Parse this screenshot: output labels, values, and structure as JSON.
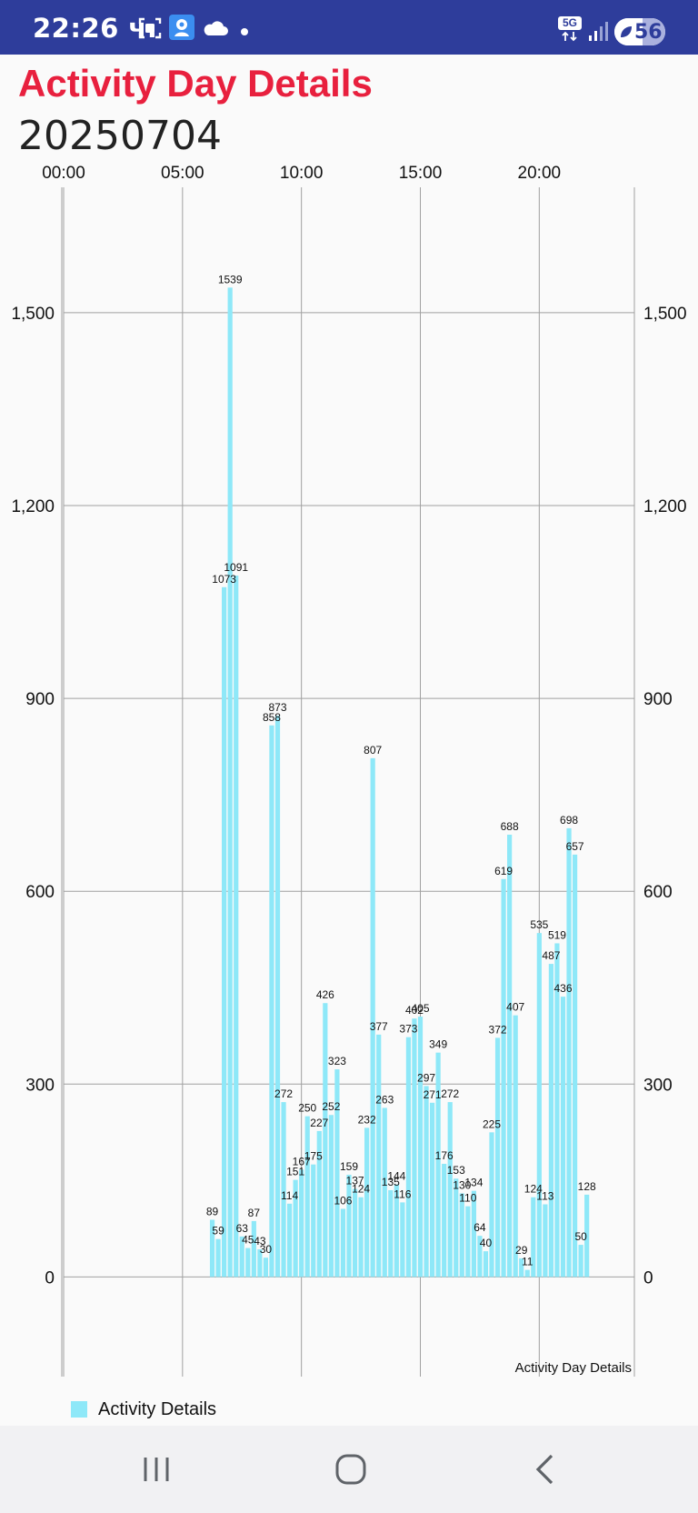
{
  "status_bar": {
    "time": "22:26 ч.",
    "network": "5G",
    "battery": "56",
    "icons": [
      "screenshot-icon",
      "location-icon",
      "cloud-icon",
      "dot-icon",
      "5g-icon",
      "signal-icon",
      "battery-icon"
    ]
  },
  "header": {
    "title": "Activity Day Details",
    "date": "20250704"
  },
  "colors": {
    "status_bar": "#2e3d9b",
    "title": "#e8203e",
    "bar": "#8ee8f8",
    "grid": "#a0a0a0"
  },
  "chart_data": {
    "type": "bar",
    "description_label": "Activity Day Details",
    "x_tick_labels": [
      "00:00",
      "05:00",
      "10:00",
      "15:00",
      "20:00"
    ],
    "x_tick_minutes": [
      0,
      300,
      600,
      900,
      1200
    ],
    "y_tick_labels": [
      "0",
      "300",
      "600",
      "900",
      "1,200",
      "1,500"
    ],
    "y_tick_values": [
      0,
      300,
      600,
      900,
      1200,
      1500
    ],
    "ylim": [
      -155,
      1695
    ],
    "xlim_minutes": [
      0,
      1440
    ],
    "grid": true,
    "legend_position": "bottom-left",
    "series": [
      {
        "name": "Activity Details",
        "x_minutes": [
          375,
          390,
          405,
          420,
          435,
          450,
          465,
          480,
          495,
          510,
          525,
          540,
          555,
          570,
          585,
          600,
          615,
          630,
          645,
          660,
          675,
          690,
          705,
          720,
          735,
          750,
          765,
          780,
          795,
          810,
          825,
          840,
          855,
          870,
          885,
          900,
          915,
          930,
          945,
          960,
          975,
          990,
          1005,
          1020,
          1035,
          1050,
          1065,
          1080,
          1095,
          1110,
          1125,
          1140,
          1155,
          1170,
          1185,
          1200,
          1215,
          1230,
          1245,
          1260,
          1275,
          1290,
          1305,
          1320
        ],
        "values": [
          89,
          59,
          1073,
          1539,
          1091,
          63,
          45,
          87,
          43,
          30,
          858,
          873,
          272,
          114,
          151,
          167,
          250,
          175,
          227,
          426,
          252,
          323,
          106,
          159,
          137,
          124,
          232,
          807,
          377,
          263,
          135,
          144,
          116,
          373,
          402,
          405,
          297,
          271,
          349,
          176,
          272,
          153,
          130,
          110,
          134,
          64,
          40,
          225,
          372,
          619,
          688,
          407,
          29,
          11,
          124,
          535,
          113,
          487,
          519,
          436,
          698,
          657,
          50,
          128
        ],
        "labels": [
          "89",
          "59",
          "1073",
          "1539",
          "1091",
          "63",
          "45",
          "87",
          "43",
          "30",
          "858",
          "873",
          "272",
          "114",
          "151",
          "167",
          "250",
          "175",
          "227",
          "426",
          "252",
          "323",
          "106",
          "159",
          "137",
          "124",
          "232",
          "807",
          "377",
          "263",
          "135",
          "144",
          "116",
          "373",
          "402",
          "405",
          "297",
          "271",
          "349",
          "176",
          "272",
          "153",
          "130",
          "110",
          "134",
          "64",
          "40",
          "225",
          "372",
          "619",
          "688",
          "407",
          "29",
          "11",
          "124",
          "535",
          "113",
          "487",
          "519",
          "436",
          "698",
          "657",
          "50",
          "128"
        ]
      }
    ]
  },
  "legend": {
    "label": "Activity Details"
  },
  "nav_bar": {
    "buttons": [
      "recent-apps-icon",
      "home-icon",
      "back-icon"
    ]
  }
}
